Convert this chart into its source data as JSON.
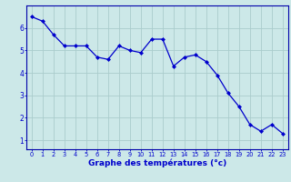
{
  "x": [
    0,
    1,
    2,
    3,
    4,
    5,
    6,
    7,
    8,
    9,
    10,
    11,
    12,
    13,
    14,
    15,
    16,
    17,
    18,
    19,
    20,
    21,
    22,
    23
  ],
  "y": [
    6.5,
    6.3,
    5.7,
    5.2,
    5.2,
    5.2,
    4.7,
    4.6,
    5.2,
    5.0,
    4.9,
    5.5,
    5.5,
    4.3,
    4.7,
    4.8,
    4.5,
    3.9,
    3.1,
    2.5,
    1.7,
    1.4,
    1.7,
    1.3
  ],
  "xlabel": "Graphe des températures (°c)",
  "xlim_min": -0.5,
  "xlim_max": 23.5,
  "ylim_min": 0.6,
  "ylim_max": 7.0,
  "yticks": [
    1,
    2,
    3,
    4,
    5,
    6
  ],
  "xticks": [
    0,
    1,
    2,
    3,
    4,
    5,
    6,
    7,
    8,
    9,
    10,
    11,
    12,
    13,
    14,
    15,
    16,
    17,
    18,
    19,
    20,
    21,
    22,
    23
  ],
  "line_color": "#0000cc",
  "marker": "D",
  "marker_size": 2.0,
  "bg_color": "#cce8e8",
  "grid_color": "#aacccc",
  "axis_color": "#0000aa",
  "tick_color": "#0000cc",
  "label_color": "#0000cc",
  "xlabel_fontsize": 6.5,
  "xtick_fontsize": 4.8,
  "ytick_fontsize": 5.5,
  "linewidth": 0.9
}
